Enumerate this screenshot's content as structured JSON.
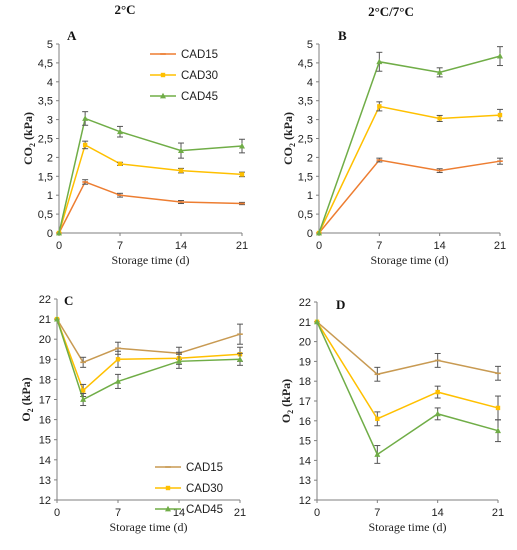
{
  "column_titles": [
    "2°C",
    "2°C/7°C"
  ],
  "colors": {
    "CAD15": "#ed7d31",
    "CAD30": "#ffc000",
    "CAD45": "#70ad47",
    "CAD15_o2": "#c89a52"
  },
  "chart_data": [
    {
      "type": "line",
      "letter": "A",
      "xlabel": "Storage time (d)",
      "ylabel_main": "CO",
      "ylabel_sub": "2",
      "ylabel_unit": " (kPa)",
      "xlim": [
        0,
        21
      ],
      "ylim": [
        0,
        5
      ],
      "xticks": [
        "0",
        "7",
        "14",
        "21"
      ],
      "yticks": [
        "0",
        "0,5",
        "1",
        "1,5",
        "2",
        "2,5",
        "3",
        "3,5",
        "4",
        "4,5",
        "5"
      ],
      "legend": "top-right",
      "series": [
        {
          "name": "CAD15",
          "x": [
            0,
            3,
            7,
            14,
            21
          ],
          "y": [
            0.0,
            1.35,
            1.0,
            0.82,
            0.78
          ],
          "err": [
            0,
            0.06,
            0.05,
            0.04,
            0.03
          ]
        },
        {
          "name": "CAD30",
          "x": [
            0,
            3,
            7,
            14,
            21
          ],
          "y": [
            0.0,
            2.33,
            1.83,
            1.65,
            1.55
          ],
          "err": [
            0,
            0.1,
            0.04,
            0.06,
            0.06
          ]
        },
        {
          "name": "CAD45",
          "x": [
            0,
            3,
            7,
            14,
            21
          ],
          "y": [
            0.0,
            3.03,
            2.68,
            2.18,
            2.3
          ],
          "err": [
            0,
            0.18,
            0.14,
            0.2,
            0.18
          ]
        }
      ]
    },
    {
      "type": "line",
      "letter": "B",
      "xlabel": "Storage time (d)",
      "ylabel_main": "CO",
      "ylabel_sub": "2",
      "ylabel_unit": " (kPa)",
      "xlim": [
        0,
        21
      ],
      "ylim": [
        0,
        5
      ],
      "xticks": [
        "0",
        "7",
        "14",
        "21"
      ],
      "yticks": [
        "0",
        "0,5",
        "1",
        "1,5",
        "2",
        "2,5",
        "3",
        "3,5",
        "4",
        "4,5",
        "5"
      ],
      "legend": "none",
      "series": [
        {
          "name": "CAD15",
          "x": [
            0,
            7,
            14,
            21
          ],
          "y": [
            0.0,
            1.93,
            1.65,
            1.9
          ],
          "err": [
            0,
            0.05,
            0.05,
            0.08
          ]
        },
        {
          "name": "CAD30",
          "x": [
            0,
            7,
            14,
            21
          ],
          "y": [
            0.0,
            3.35,
            3.03,
            3.12
          ],
          "err": [
            0,
            0.12,
            0.08,
            0.15
          ]
        },
        {
          "name": "CAD45",
          "x": [
            0,
            7,
            14,
            21
          ],
          "y": [
            0.0,
            4.53,
            4.25,
            4.68
          ],
          "err": [
            0,
            0.25,
            0.12,
            0.25
          ]
        }
      ]
    },
    {
      "type": "line",
      "letter": "C",
      "xlabel": "Storage time (d)",
      "ylabel_main": "O",
      "ylabel_sub": "2",
      "ylabel_unit": " (kPa)",
      "xlim": [
        0,
        21
      ],
      "ylim": [
        12,
        22
      ],
      "xticks": [
        "0",
        "7",
        "14",
        "21"
      ],
      "yticks": [
        "12",
        "13",
        "14",
        "15",
        "16",
        "17",
        "18",
        "19",
        "20",
        "21",
        "22"
      ],
      "legend": "bottom-right",
      "series": [
        {
          "name": "CAD15",
          "x": [
            0,
            3,
            7,
            14,
            21
          ],
          "y": [
            21.0,
            18.85,
            19.55,
            19.3,
            20.25
          ],
          "err": [
            0,
            0.25,
            0.3,
            0.3,
            0.5
          ]
        },
        {
          "name": "CAD30",
          "x": [
            0,
            3,
            7,
            14,
            21
          ],
          "y": [
            21.0,
            17.45,
            19.0,
            19.05,
            19.25
          ],
          "err": [
            0,
            0.3,
            0.4,
            0.3,
            0.35
          ]
        },
        {
          "name": "CAD45",
          "x": [
            0,
            3,
            7,
            14,
            21
          ],
          "y": [
            21.0,
            17.0,
            17.9,
            18.9,
            19.0
          ],
          "err": [
            0,
            0.3,
            0.35,
            0.35,
            0.3
          ]
        }
      ]
    },
    {
      "type": "line",
      "letter": "D",
      "xlabel": "Storage time (d)",
      "ylabel_main": "O",
      "ylabel_sub": "2",
      "ylabel_unit": " (kPa)",
      "xlim": [
        0,
        21
      ],
      "ylim": [
        12,
        22
      ],
      "xticks": [
        "0",
        "7",
        "14",
        "21"
      ],
      "yticks": [
        "12",
        "13",
        "14",
        "15",
        "16",
        "17",
        "18",
        "19",
        "20",
        "21",
        "22"
      ],
      "legend": "none",
      "series": [
        {
          "name": "CAD15",
          "x": [
            0,
            7,
            14,
            21
          ],
          "y": [
            21.0,
            18.35,
            19.05,
            18.4
          ],
          "err": [
            0,
            0.35,
            0.35,
            0.35
          ]
        },
        {
          "name": "CAD30",
          "x": [
            0,
            7,
            14,
            21
          ],
          "y": [
            21.0,
            16.1,
            17.45,
            16.65
          ],
          "err": [
            0,
            0.35,
            0.3,
            0.6
          ]
        },
        {
          "name": "CAD45",
          "x": [
            0,
            7,
            14,
            21
          ],
          "y": [
            21.0,
            14.3,
            16.35,
            15.5
          ],
          "err": [
            0,
            0.45,
            0.3,
            0.55
          ]
        }
      ]
    }
  ]
}
